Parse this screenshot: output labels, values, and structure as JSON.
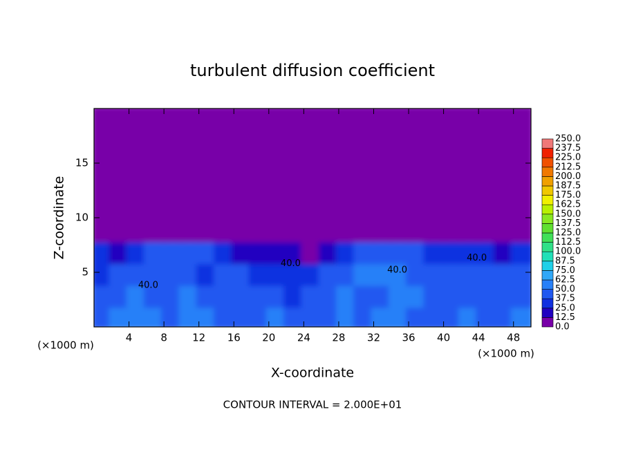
{
  "chart_data": {
    "type": "heatmap",
    "title": "turbulent diffusion coefficient",
    "xlabel": "X-coordinate",
    "ylabel": "Z-coordinate",
    "x_unit_label": "(×1000 m)",
    "y_unit_label": "(×1000 m)",
    "note": "CONTOUR INTERVAL = 2.000E+01",
    "xlim": [
      0,
      50
    ],
    "ylim": [
      0,
      20
    ],
    "xticks": [
      4,
      8,
      12,
      16,
      20,
      24,
      28,
      32,
      36,
      40,
      44,
      48
    ],
    "yticks": [
      5,
      10,
      15
    ],
    "x": [
      1,
      3,
      5,
      7,
      9,
      11,
      13,
      15,
      17,
      19,
      21,
      23,
      25,
      27,
      29,
      31,
      33,
      35,
      37,
      39,
      41,
      43,
      45,
      47,
      49
    ],
    "y": [
      1,
      3,
      5,
      7,
      9,
      11,
      13,
      15,
      17,
      19
    ],
    "z": [
      [
        45,
        50,
        55,
        50,
        45,
        55,
        50,
        45,
        40,
        45,
        50,
        45,
        40,
        45,
        50,
        40,
        55,
        55,
        45,
        40,
        45,
        50,
        45,
        40,
        50
      ],
      [
        40,
        45,
        50,
        45,
        40,
        50,
        45,
        45,
        40,
        45,
        40,
        35,
        45,
        40,
        50,
        45,
        40,
        55,
        50,
        40,
        40,
        45,
        40,
        40,
        45
      ],
      [
        35,
        40,
        40,
        45,
        40,
        40,
        35,
        40,
        40,
        35,
        30,
        35,
        30,
        40,
        40,
        50,
        50,
        55,
        45,
        40,
        45,
        40,
        40,
        40,
        40
      ],
      [
        25,
        20,
        30,
        40,
        45,
        40,
        40,
        35,
        20,
        15,
        20,
        15,
        10,
        20,
        35,
        40,
        45,
        40,
        40,
        35,
        30,
        30,
        25,
        20,
        25
      ],
      [
        0,
        0,
        0,
        0,
        5,
        10,
        5,
        0,
        0,
        0,
        0,
        0,
        0,
        0,
        0,
        0,
        0,
        5,
        10,
        5,
        0,
        0,
        0,
        0,
        0
      ],
      [
        0,
        0,
        0,
        0,
        0,
        0,
        0,
        0,
        0,
        0,
        0,
        0,
        0,
        0,
        0,
        0,
        0,
        0,
        0,
        0,
        0,
        0,
        0,
        0,
        0
      ],
      [
        0,
        0,
        0,
        0,
        0,
        0,
        0,
        0,
        0,
        0,
        0,
        0,
        0,
        0,
        0,
        0,
        0,
        0,
        0,
        0,
        0,
        0,
        0,
        0,
        0
      ],
      [
        0,
        0,
        0,
        0,
        0,
        0,
        0,
        0,
        0,
        0,
        0,
        0,
        0,
        0,
        0,
        0,
        0,
        0,
        0,
        0,
        0,
        0,
        0,
        0,
        0
      ],
      [
        0,
        0,
        0,
        0,
        0,
        0,
        0,
        0,
        0,
        0,
        0,
        0,
        0,
        0,
        0,
        0,
        0,
        0,
        0,
        0,
        0,
        0,
        0,
        0,
        0
      ],
      [
        0,
        0,
        0,
        0,
        0,
        0,
        0,
        0,
        0,
        0,
        0,
        0,
        0,
        0,
        0,
        0,
        0,
        0,
        0,
        0,
        0,
        0,
        0,
        0,
        0
      ]
    ],
    "levels": [
      {
        "value": 0,
        "label": "0.0"
      },
      12.5,
      {
        "value": 25,
        "label": "25.0"
      },
      37.5,
      {
        "value": 50,
        "label": "50.0"
      },
      62.5,
      {
        "value": 75,
        "label": "75.0"
      },
      87.5,
      {
        "value": 100,
        "label": "100.0"
      },
      112.5,
      {
        "value": 125,
        "label": "125.0"
      },
      137.5,
      {
        "value": 150,
        "label": "150.0"
      },
      162.5,
      {
        "value": 175,
        "label": "175.0"
      },
      187.5,
      {
        "value": 200,
        "label": "200.0"
      },
      212.5,
      {
        "value": 225,
        "label": "225.0"
      },
      237.5,
      {
        "value": 250,
        "label": "250.0"
      }
    ],
    "colors": [
      "#7800a8",
      "#2000c0",
      "#1030e0",
      "#2058f0",
      "#2880f8",
      "#30a8f8",
      "#20d0e8",
      "#20e0b8",
      "#30e088",
      "#40e058",
      "#60e030",
      "#88e820",
      "#b8f000",
      "#f0f000",
      "#f0c800",
      "#f0a000",
      "#f07800",
      "#f05000",
      "#f02000",
      "#f07878"
    ],
    "contour_labels": [
      {
        "text": "40.0",
        "x": 6.2,
        "y": 3.8
      },
      {
        "text": "40.0",
        "x": 22.5,
        "y": 5.8
      },
      {
        "text": "40.0",
        "x": 34.7,
        "y": 5.2
      },
      {
        "text": "40.0",
        "x": 43.8,
        "y": 6.3
      }
    ]
  }
}
